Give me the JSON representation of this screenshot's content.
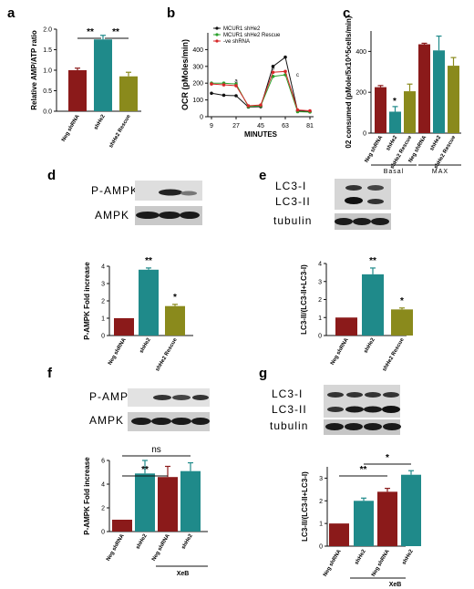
{
  "colors": {
    "neg": "#8b1a1a",
    "teal": "#1f8a8a",
    "olive": "#8a8a1c",
    "black": "#111111",
    "green": "#2ca02c",
    "red": "#d62728"
  },
  "panel_labels": [
    "a",
    "b",
    "c",
    "d",
    "e",
    "f",
    "g"
  ],
  "blots": {
    "d": {
      "bands": [
        "P-AMPK",
        "AMPK"
      ]
    },
    "e": {
      "bands": [
        "LC3-I",
        "LC3-II",
        "tubulin"
      ]
    },
    "f": {
      "bands": [
        "P-AMPK",
        "AMPK"
      ]
    },
    "g": {
      "bands": [
        "LC3-I",
        "LC3-II",
        "tubulin"
      ]
    }
  },
  "chart_data": [
    {
      "id": "a",
      "type": "bar",
      "categories": [
        "Neg shRNA",
        "shHe2",
        "shHe2 Rescue"
      ],
      "values": [
        1.0,
        1.75,
        0.85
      ],
      "errors": [
        0.05,
        0.1,
        0.1
      ],
      "colors": [
        "#8b1a1a",
        "#1f8a8a",
        "#8a8a1c"
      ],
      "ylabel": "Relative AMP/ATP ratio",
      "ylim": [
        0,
        2
      ],
      "yticks": [
        "0.0",
        "0.5",
        "1.0",
        "1.5",
        "2.0"
      ],
      "significance": [
        "**",
        "**"
      ]
    },
    {
      "id": "b",
      "type": "line",
      "xlabel": "MINUTES",
      "ylabel": "OCR (pMoles/min)",
      "ylim": [
        0,
        500
      ],
      "yticks": [
        "0",
        "100",
        "200",
        "300",
        "400"
      ],
      "xticks": [
        "9",
        "27",
        "45",
        "63",
        "81"
      ],
      "x": [
        9,
        18,
        27,
        36,
        45,
        54,
        63,
        72,
        81
      ],
      "series": [
        {
          "name": "MCUR1 shHe2",
          "color": "#111111",
          "values": [
            140,
            128,
            125,
            58,
            60,
            300,
            355,
            35,
            30
          ]
        },
        {
          "name": "MCUR1 shHe2 Rescue",
          "color": "#2ca02c",
          "values": [
            200,
            200,
            195,
            60,
            65,
            240,
            250,
            30,
            28
          ]
        },
        {
          "name": "-ve shRNA",
          "color": "#d62728",
          "values": [
            195,
            190,
            185,
            65,
            70,
            265,
            270,
            40,
            35
          ]
        }
      ],
      "annotations": [
        "a",
        "b",
        "c"
      ]
    },
    {
      "id": "c",
      "type": "bar",
      "categories": [
        "Neg shRNA",
        "shHe2",
        "shHe2 Rescue",
        "Neg shRNA",
        "shHe2",
        "shHe2 Rescue"
      ],
      "values": [
        225,
        105,
        205,
        435,
        405,
        330
      ],
      "errors": [
        8,
        25,
        35,
        5,
        70,
        40
      ],
      "colors": [
        "#8b1a1a",
        "#1f8a8a",
        "#8a8a1c",
        "#8b1a1a",
        "#1f8a8a",
        "#8a8a1c"
      ],
      "ylabel": "02 consumed (pMole/5x10^5cells/min)",
      "ylim": [
        0,
        500
      ],
      "yticks": [
        "0",
        "200",
        "400"
      ],
      "groups": [
        "Basal",
        "MAX"
      ],
      "significance": [
        "*"
      ]
    },
    {
      "id": "d",
      "type": "bar",
      "categories": [
        "Neg shRNA",
        "shHe2",
        "shHe2 Rescue"
      ],
      "values": [
        1.0,
        3.8,
        1.7
      ],
      "errors": [
        0,
        0.1,
        0.1
      ],
      "colors": [
        "#8b1a1a",
        "#1f8a8a",
        "#8a8a1c"
      ],
      "ylabel": "P-AMPK Fold increase",
      "ylim": [
        0,
        4
      ],
      "yticks": [
        "0",
        "1",
        "2",
        "3",
        "4"
      ],
      "significance": [
        "**",
        "*"
      ]
    },
    {
      "id": "e",
      "type": "bar",
      "categories": [
        "Neg shRNA",
        "shHe2",
        "shHe2 Rescue"
      ],
      "values": [
        1.0,
        3.4,
        1.45
      ],
      "errors": [
        0,
        0.35,
        0.08
      ],
      "colors": [
        "#8b1a1a",
        "#1f8a8a",
        "#8a8a1c"
      ],
      "ylabel": "LC3-II/(LC3-II+LC3-I)",
      "ylim": [
        0,
        4
      ],
      "yticks": [
        "0",
        "1",
        "2",
        "3",
        "4"
      ],
      "significance": [
        "**",
        "*"
      ]
    },
    {
      "id": "f",
      "type": "bar",
      "categories": [
        "Neg shRNA",
        "shHe2",
        "Neg shRNA",
        "shHe2"
      ],
      "values": [
        1.0,
        4.9,
        4.6,
        5.1
      ],
      "errors": [
        0,
        1.1,
        0.9,
        0.7
      ],
      "colors": [
        "#8b1a1a",
        "#1f8a8a",
        "#8b1a1a",
        "#1f8a8a"
      ],
      "ylabel": "P-AMPK Fold increase",
      "ylim": [
        0,
        6
      ],
      "yticks": [
        "0",
        "2",
        "4",
        "6"
      ],
      "group_label": "XeB",
      "significance": [
        "**",
        "ns"
      ]
    },
    {
      "id": "g",
      "type": "bar",
      "categories": [
        "Neg shRNA",
        "shHe2",
        "Neg shRNA",
        "shHe2"
      ],
      "values": [
        1.0,
        2.0,
        2.4,
        3.15
      ],
      "errors": [
        0,
        0.12,
        0.15,
        0.18
      ],
      "colors": [
        "#8b1a1a",
        "#1f8a8a",
        "#8b1a1a",
        "#1f8a8a"
      ],
      "ylabel": "LC3-II/(LC3-II+LC3-I)",
      "ylim": [
        0,
        3.5
      ],
      "yticks": [
        "0",
        "1",
        "2",
        "3"
      ],
      "group_label": "XeB",
      "significance": [
        "**",
        "*"
      ]
    }
  ]
}
